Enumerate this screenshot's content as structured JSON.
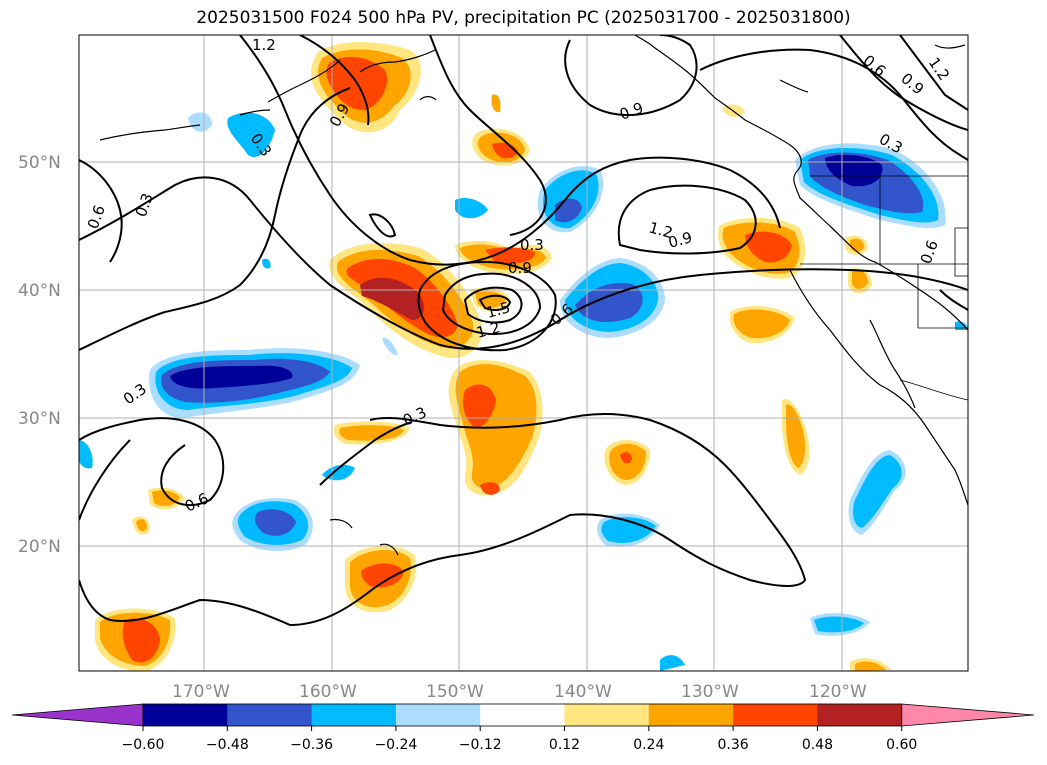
{
  "title": "2025031500 F024 500 hPa PV, precipitation PC (2025031700 - 2025031800)",
  "lat_labels": [
    "50°N",
    "40°N",
    "30°N",
    "20°N"
  ],
  "lon_labels": [
    "170°W",
    "160°W",
    "150°W",
    "140°W",
    "130°W",
    "120°W"
  ],
  "contour_labels": [
    "1.2",
    "0.9",
    "0.3",
    "0.6",
    "0.3",
    "0.9",
    "0.3",
    "0.9",
    "1.2",
    "0.9",
    "1.5",
    "1.2",
    "0.6",
    "0.3",
    "0.3",
    "0.6",
    "0.6",
    "0.9",
    "1.2",
    "0.3",
    "0.6",
    "0.6"
  ],
  "colorbar": {
    "ticks": [
      "−0.60",
      "−0.48",
      "−0.36",
      "−0.24",
      "−0.12",
      "0.12",
      "0.24",
      "0.36",
      "0.48",
      "0.60"
    ],
    "colors": [
      "#9933cc",
      "#000099",
      "#3355cc",
      "#00bbff",
      "#aaddff",
      "#ffffff",
      "#ffe680",
      "#ffa500",
      "#ff4500",
      "#b22222",
      "#ff88aa"
    ]
  },
  "colors": {
    "dark_blue": "#000099",
    "mid_blue": "#3355cc",
    "light_blue": "#00bbff",
    "pale_blue": "#aaddff",
    "pale_yellow": "#ffe680",
    "orange": "#ffa500",
    "red_orange": "#ff4500",
    "dark_red": "#b22222"
  }
}
